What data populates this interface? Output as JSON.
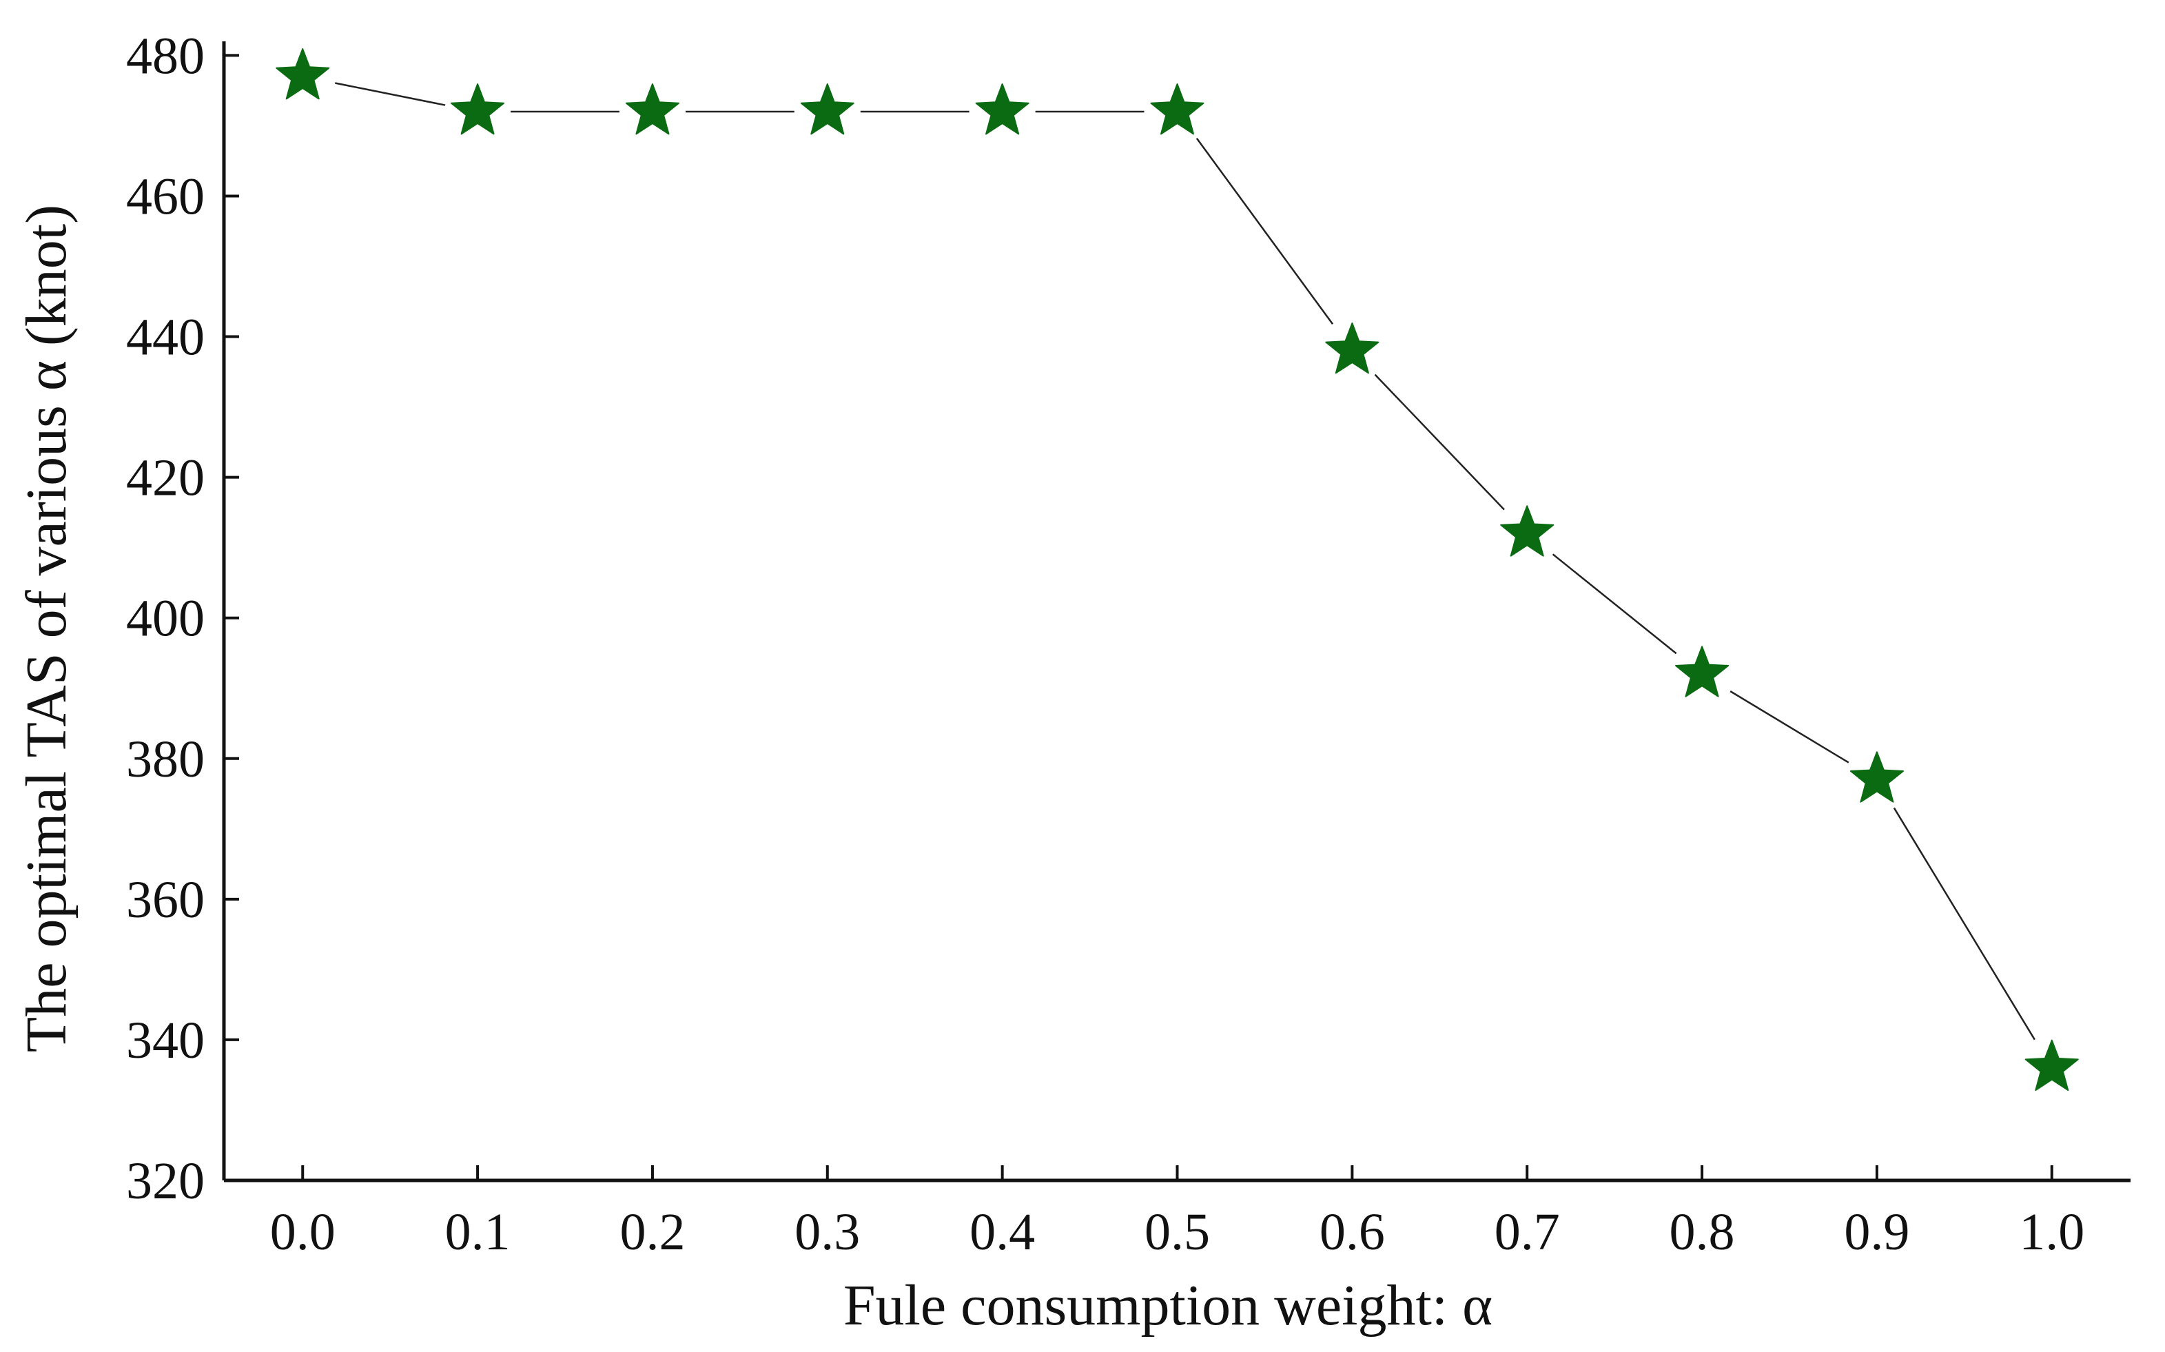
{
  "chart_data": {
    "type": "line",
    "xlabel": "Fule consumption weight: α",
    "ylabel": "The optimal TAS of various α (knot)",
    "x": [
      0.0,
      0.1,
      0.2,
      0.3,
      0.4,
      0.5,
      0.6,
      0.7,
      0.8,
      0.9,
      1.0
    ],
    "x_tick_labels": [
      "0.0",
      "0.1",
      "0.2",
      "0.3",
      "0.4",
      "0.5",
      "0.6",
      "0.7",
      "0.8",
      "0.9",
      "1.0"
    ],
    "y_tick_labels": [
      "320",
      "340",
      "360",
      "380",
      "400",
      "420",
      "440",
      "460",
      "480"
    ],
    "y_ticks": [
      320,
      340,
      360,
      380,
      400,
      420,
      440,
      460,
      480
    ],
    "series": [
      {
        "values": [
          477,
          472,
          472,
          472,
          472,
          472,
          438,
          412,
          392,
          377,
          336
        ],
        "marker": "star",
        "marker_color": "#0a6b12",
        "line_color": "#222222"
      }
    ],
    "xlim": [
      -0.045,
      1.045
    ],
    "ylim": [
      320,
      482
    ],
    "grid": false,
    "legend": "none"
  }
}
